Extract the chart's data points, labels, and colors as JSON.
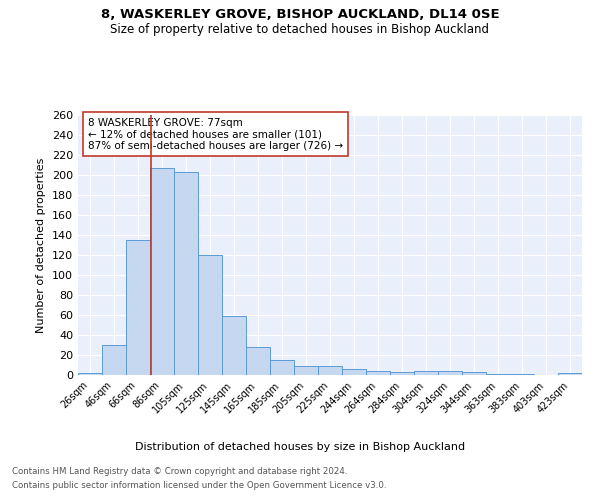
{
  "title1": "8, WASKERLEY GROVE, BISHOP AUCKLAND, DL14 0SE",
  "title2": "Size of property relative to detached houses in Bishop Auckland",
  "xlabel": "Distribution of detached houses by size in Bishop Auckland",
  "ylabel": "Number of detached properties",
  "bin_labels": [
    "26sqm",
    "46sqm",
    "66sqm",
    "86sqm",
    "105sqm",
    "125sqm",
    "145sqm",
    "165sqm",
    "185sqm",
    "205sqm",
    "225sqm",
    "244sqm",
    "264sqm",
    "284sqm",
    "304sqm",
    "324sqm",
    "344sqm",
    "363sqm",
    "383sqm",
    "403sqm",
    "423sqm"
  ],
  "bar_heights": [
    2,
    30,
    135,
    207,
    203,
    120,
    59,
    28,
    15,
    9,
    9,
    6,
    4,
    3,
    4,
    4,
    3,
    1,
    1,
    0,
    2
  ],
  "bar_color": "#c5d8f0",
  "bar_edge_color": "#5b9bd5",
  "ylim": [
    0,
    260
  ],
  "yticks": [
    0,
    20,
    40,
    60,
    80,
    100,
    120,
    140,
    160,
    180,
    200,
    220,
    240,
    260
  ],
  "property_line_color": "#c0392b",
  "annotation_text": "8 WASKERLEY GROVE: 77sqm\n← 12% of detached houses are smaller (101)\n87% of semi-detached houses are larger (726) →",
  "annotation_box_color": "white",
  "annotation_box_edge": "#c0392b",
  "footer1": "Contains HM Land Registry data © Crown copyright and database right 2024.",
  "footer2": "Contains public sector information licensed under the Open Government Licence v3.0.",
  "plot_bg_color": "#eaf0fb"
}
